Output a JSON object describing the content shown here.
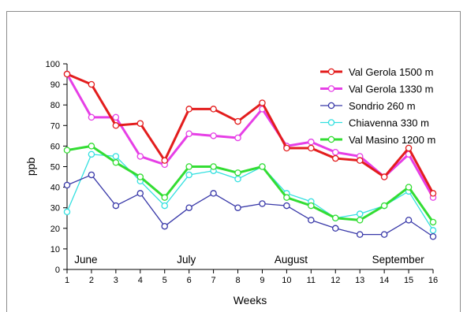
{
  "chart_data": {
    "type": "line",
    "title": "",
    "xlabel": "Weeks",
    "ylabel": "ppb",
    "x": [
      1,
      2,
      3,
      4,
      5,
      6,
      7,
      8,
      9,
      10,
      11,
      12,
      13,
      14,
      15,
      16
    ],
    "xlim": [
      1,
      16
    ],
    "ylim": [
      0,
      100
    ],
    "yticks": [
      0,
      10,
      20,
      30,
      40,
      50,
      60,
      70,
      80,
      90,
      100
    ],
    "grid": false,
    "legend_position": "top-right",
    "annotations": [
      {
        "text": "June",
        "x": 1.3
      },
      {
        "text": "July",
        "x": 5.5
      },
      {
        "text": "August",
        "x": 9.5
      },
      {
        "text": "September",
        "x": 13.5
      }
    ],
    "series": [
      {
        "name": "Val Gerola 1500 m",
        "color": "#e31d1d",
        "values": [
          95,
          90,
          70,
          71,
          53,
          78,
          78,
          72,
          81,
          59,
          59,
          54,
          53,
          45,
          59,
          37
        ]
      },
      {
        "name": "Val Gerola 1330 m",
        "color": "#e63fe6",
        "values": [
          95,
          74,
          74,
          55,
          51,
          66,
          65,
          64,
          78,
          60,
          62,
          57,
          55,
          45,
          56,
          35
        ]
      },
      {
        "name": "Sondrio 260 m",
        "color": "#3838a8",
        "values": [
          41,
          46,
          31,
          37,
          21,
          30,
          37,
          30,
          32,
          31,
          24,
          20,
          17,
          17,
          24,
          16
        ]
      },
      {
        "name": "Chiavenna 330 m",
        "color": "#33e0e0",
        "values": [
          28,
          56,
          55,
          43,
          31,
          46,
          48,
          44,
          50,
          37,
          33,
          25,
          27,
          31,
          38,
          19
        ]
      },
      {
        "name": "Val Masino 1200 m",
        "color": "#33dd33",
        "values": [
          58,
          60,
          52,
          45,
          35,
          50,
          50,
          47,
          50,
          35,
          31,
          25,
          24,
          31,
          40,
          23
        ]
      }
    ]
  }
}
